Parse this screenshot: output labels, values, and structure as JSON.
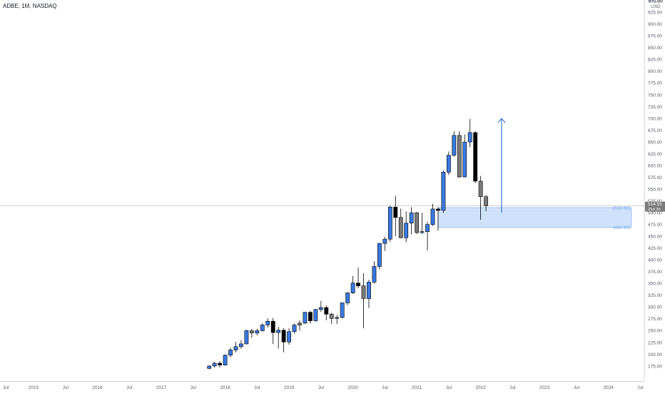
{
  "header": {
    "symbol_label": "ADBE, 1M, NASDAQ"
  },
  "price_axis": {
    "currency": "USD",
    "top_label": "975.00"
  },
  "last_price": {
    "label": "514.55",
    "countdown": "25d 3h"
  },
  "zone": {
    "upper_label": "510.92",
    "lower_label": "468.90"
  },
  "colors": {
    "bull": "#3a79e0",
    "bear": "#000000",
    "neutral": "#7a7a7a",
    "zone_fill": "#cfe2fb",
    "zone_border": "#8fb8ef",
    "arrow": "#3a79e0",
    "axis_text": "#555a66",
    "grid": "#e6e8ec"
  },
  "chart_data": {
    "type": "candlestick",
    "title": "ADBE, 1M, NASDAQ",
    "xlabel": "",
    "ylabel": "USD",
    "ylim": [
      165,
      982
    ],
    "x_ticks": [
      "2015",
      "Jul",
      "2016",
      "Jul",
      "2017",
      "Jul",
      "2018",
      "Jul",
      "2019",
      "Jul",
      "2020",
      "Jul",
      "2021",
      "Jul",
      "2022",
      "Jul",
      "2023",
      "Jul",
      "2024",
      "Jul"
    ],
    "y_ticks": [
      175,
      200,
      225,
      250,
      275,
      300,
      325,
      350,
      375,
      400,
      425,
      450,
      475,
      500,
      525,
      550,
      575,
      600,
      625,
      650,
      675,
      700,
      725,
      750,
      775,
      800,
      825,
      850,
      875,
      900,
      925,
      950
    ],
    "candles": [
      {
        "date": "2017-10",
        "o": 170,
        "h": 177,
        "l": 168,
        "c": 175
      },
      {
        "date": "2017-11",
        "o": 175,
        "h": 184,
        "l": 172,
        "c": 181
      },
      {
        "date": "2017-12",
        "o": 181,
        "h": 185,
        "l": 172,
        "c": 177
      },
      {
        "date": "2018-01",
        "o": 177,
        "h": 200,
        "l": 176,
        "c": 198
      },
      {
        "date": "2018-02",
        "o": 198,
        "h": 214,
        "l": 194,
        "c": 209
      },
      {
        "date": "2018-03",
        "o": 209,
        "h": 226,
        "l": 204,
        "c": 216
      },
      {
        "date": "2018-04",
        "o": 216,
        "h": 230,
        "l": 212,
        "c": 222
      },
      {
        "date": "2018-05",
        "o": 222,
        "h": 252,
        "l": 221,
        "c": 250
      },
      {
        "date": "2018-06",
        "o": 250,
        "h": 254,
        "l": 235,
        "c": 245
      },
      {
        "date": "2018-07",
        "o": 245,
        "h": 254,
        "l": 240,
        "c": 250
      },
      {
        "date": "2018-08",
        "o": 250,
        "h": 266,
        "l": 248,
        "c": 262
      },
      {
        "date": "2018-09",
        "o": 262,
        "h": 276,
        "l": 256,
        "c": 270
      },
      {
        "date": "2018-10",
        "o": 270,
        "h": 277,
        "l": 222,
        "c": 246
      },
      {
        "date": "2018-11",
        "o": 246,
        "h": 258,
        "l": 212,
        "c": 251
      },
      {
        "date": "2018-12",
        "o": 251,
        "h": 255,
        "l": 204,
        "c": 226
      },
      {
        "date": "2019-01",
        "o": 226,
        "h": 255,
        "l": 220,
        "c": 248
      },
      {
        "date": "2019-02",
        "o": 248,
        "h": 265,
        "l": 244,
        "c": 262
      },
      {
        "date": "2019-03",
        "o": 262,
        "h": 272,
        "l": 250,
        "c": 266
      },
      {
        "date": "2019-04",
        "o": 266,
        "h": 290,
        "l": 264,
        "c": 289
      },
      {
        "date": "2019-05",
        "o": 289,
        "h": 292,
        "l": 265,
        "c": 271
      },
      {
        "date": "2019-06",
        "o": 271,
        "h": 296,
        "l": 269,
        "c": 295
      },
      {
        "date": "2019-07",
        "o": 295,
        "h": 313,
        "l": 290,
        "c": 299
      },
      {
        "date": "2019-08",
        "o": 299,
        "h": 303,
        "l": 272,
        "c": 285
      },
      {
        "date": "2019-09",
        "o": 285,
        "h": 288,
        "l": 264,
        "c": 276
      },
      {
        "date": "2019-10",
        "o": 276,
        "h": 283,
        "l": 264,
        "c": 278
      },
      {
        "date": "2019-11",
        "o": 278,
        "h": 310,
        "l": 276,
        "c": 309
      },
      {
        "date": "2019-12",
        "o": 309,
        "h": 332,
        "l": 304,
        "c": 330
      },
      {
        "date": "2020-01",
        "o": 330,
        "h": 366,
        "l": 328,
        "c": 351
      },
      {
        "date": "2020-02",
        "o": 351,
        "h": 384,
        "l": 340,
        "c": 345
      },
      {
        "date": "2020-03",
        "o": 345,
        "h": 372,
        "l": 255,
        "c": 318
      },
      {
        "date": "2020-04",
        "o": 318,
        "h": 358,
        "l": 298,
        "c": 353
      },
      {
        "date": "2020-05",
        "o": 353,
        "h": 397,
        "l": 350,
        "c": 386
      },
      {
        "date": "2020-06",
        "o": 386,
        "h": 436,
        "l": 380,
        "c": 435
      },
      {
        "date": "2020-07",
        "o": 435,
        "h": 449,
        "l": 419,
        "c": 444
      },
      {
        "date": "2020-08",
        "o": 444,
        "h": 515,
        "l": 438,
        "c": 512
      },
      {
        "date": "2020-09",
        "o": 512,
        "h": 536,
        "l": 450,
        "c": 490
      },
      {
        "date": "2020-10",
        "o": 490,
        "h": 509,
        "l": 446,
        "c": 447
      },
      {
        "date": "2020-11",
        "o": 447,
        "h": 503,
        "l": 437,
        "c": 478
      },
      {
        "date": "2020-12",
        "o": 478,
        "h": 512,
        "l": 454,
        "c": 500
      },
      {
        "date": "2021-01",
        "o": 500,
        "h": 502,
        "l": 455,
        "c": 458
      },
      {
        "date": "2021-02",
        "o": 458,
        "h": 500,
        "l": 455,
        "c": 460
      },
      {
        "date": "2021-03",
        "o": 460,
        "h": 481,
        "l": 420,
        "c": 475
      },
      {
        "date": "2021-04",
        "o": 475,
        "h": 519,
        "l": 472,
        "c": 508
      },
      {
        "date": "2021-05",
        "o": 508,
        "h": 512,
        "l": 462,
        "c": 505
      },
      {
        "date": "2021-06",
        "o": 505,
        "h": 590,
        "l": 500,
        "c": 586
      },
      {
        "date": "2021-07",
        "o": 586,
        "h": 630,
        "l": 580,
        "c": 622
      },
      {
        "date": "2021-08",
        "o": 622,
        "h": 673,
        "l": 619,
        "c": 664
      },
      {
        "date": "2021-09",
        "o": 664,
        "h": 673,
        "l": 574,
        "c": 576
      },
      {
        "date": "2021-10",
        "o": 576,
        "h": 666,
        "l": 575,
        "c": 650
      },
      {
        "date": "2021-11",
        "o": 650,
        "h": 699,
        "l": 639,
        "c": 670
      },
      {
        "date": "2021-12",
        "o": 670,
        "h": 673,
        "l": 563,
        "c": 567
      },
      {
        "date": "2022-01",
        "o": 567,
        "h": 578,
        "l": 485,
        "c": 534
      },
      {
        "date": "2022-02",
        "o": 534,
        "h": 538,
        "l": 503,
        "c": 515
      }
    ]
  }
}
